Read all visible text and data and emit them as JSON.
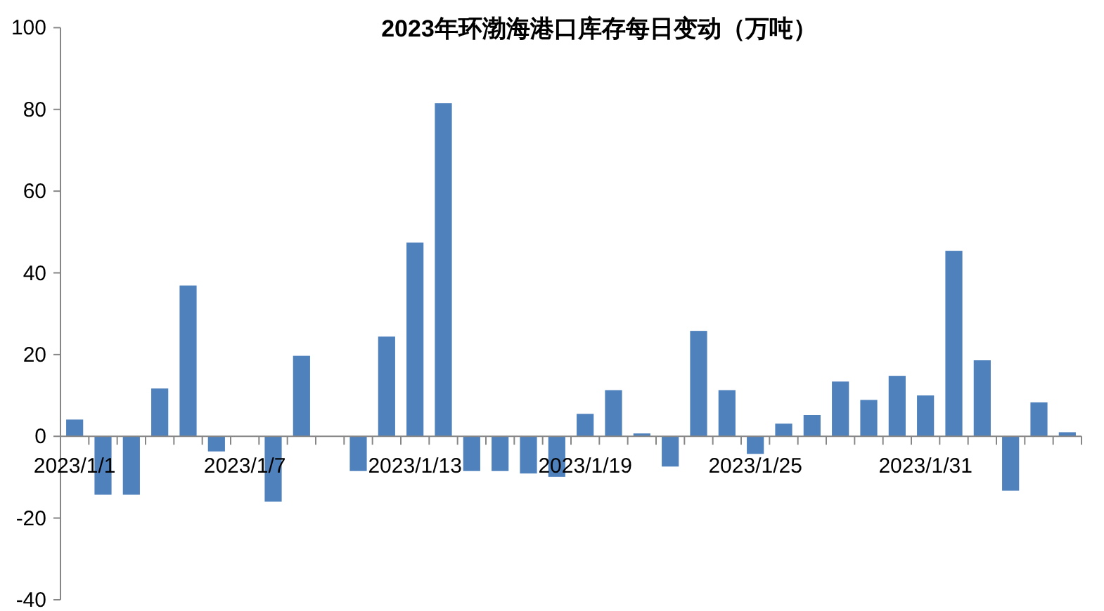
{
  "chart_data": {
    "type": "bar",
    "title": "2023年环渤海港口库存每日变动（万吨）",
    "categories": [
      "2023/1/1",
      null,
      null,
      null,
      null,
      null,
      "2023/1/7",
      null,
      null,
      null,
      null,
      null,
      "2023/1/13",
      null,
      null,
      null,
      null,
      null,
      "2023/1/19",
      null,
      null,
      null,
      null,
      null,
      "2023/1/25",
      null,
      null,
      null,
      null,
      null,
      "2023/1/31",
      null,
      null,
      null,
      null,
      null
    ],
    "values": [
      4.1,
      -14.3,
      -14.3,
      11.7,
      36.9,
      -3.7,
      0,
      -16,
      19.7,
      0,
      -8.5,
      24.4,
      47.4,
      81.5,
      -8.5,
      -8.5,
      -9.1,
      -9.9,
      5.5,
      11.3,
      0.7,
      -7.4,
      25.8,
      11.3,
      -4.3,
      3.1,
      5.2,
      13.4,
      8.9,
      14.8,
      10,
      45.4,
      18.6,
      -13.3,
      8.3,
      1.0
    ],
    "color": "#4f81bd",
    "ylim": [
      -40,
      100
    ],
    "yticks": [
      -40,
      -20,
      0,
      20,
      40,
      60,
      80,
      100
    ]
  }
}
